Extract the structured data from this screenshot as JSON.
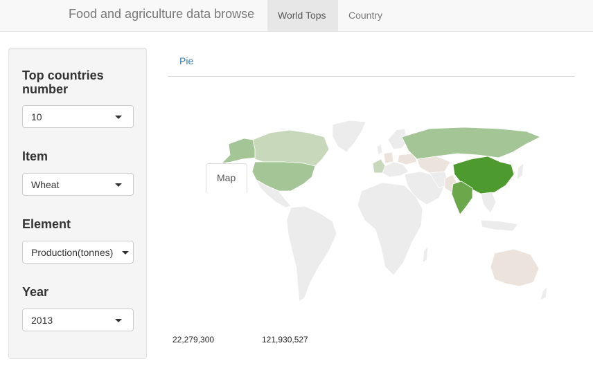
{
  "navbar": {
    "brand": "Food and agriculture data browse",
    "tabs": [
      {
        "label": "World Tops",
        "active": true
      },
      {
        "label": "Country",
        "active": false
      }
    ]
  },
  "sidebar": {
    "controls": [
      {
        "label": "Top countries number",
        "value": "10"
      },
      {
        "label": "Item",
        "value": "Wheat"
      },
      {
        "label": "Element",
        "value": "Production(tonnes)"
      },
      {
        "label": "Year",
        "value": "2013"
      }
    ]
  },
  "main": {
    "tabs": [
      {
        "label": "Pie",
        "active": false
      },
      {
        "label": "Map",
        "active": true
      }
    ],
    "legend": {
      "min": "22,279,300",
      "max": "121,930,527"
    }
  },
  "colors": {
    "land": "#ececec",
    "top1": "#4d9a2e",
    "top2": "#6ba84c",
    "mid": "#a4c596",
    "light": "#c7d8bb",
    "pale": "#ece3dc",
    "link": "#337ab7"
  }
}
